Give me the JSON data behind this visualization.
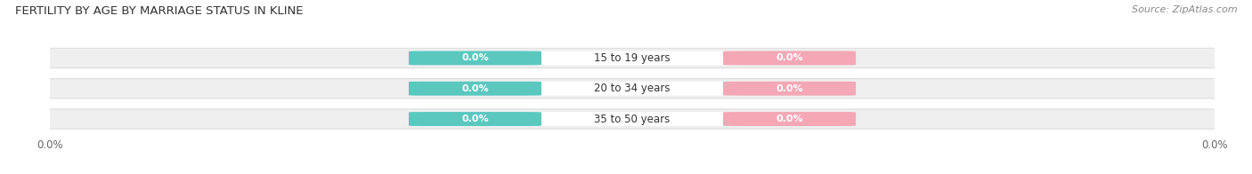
{
  "title": "FERTILITY BY AGE BY MARRIAGE STATUS IN KLINE",
  "source": "Source: ZipAtlas.com",
  "categories": [
    "15 to 19 years",
    "20 to 34 years",
    "35 to 50 years"
  ],
  "married_values": [
    0.0,
    0.0,
    0.0
  ],
  "unmarried_values": [
    0.0,
    0.0,
    0.0
  ],
  "married_color": "#5BC8C0",
  "unmarried_color": "#F4A7B5",
  "bar_bg_color": "#EFEFEF",
  "bar_bg_edge_color": "#DDDDDD",
  "white_label_color": "#FFFFFF",
  "title_fontsize": 9.5,
  "source_fontsize": 8,
  "label_fontsize": 8.5,
  "tick_label_fontsize": 8.5,
  "legend_fontsize": 9,
  "value_fontsize": 8
}
